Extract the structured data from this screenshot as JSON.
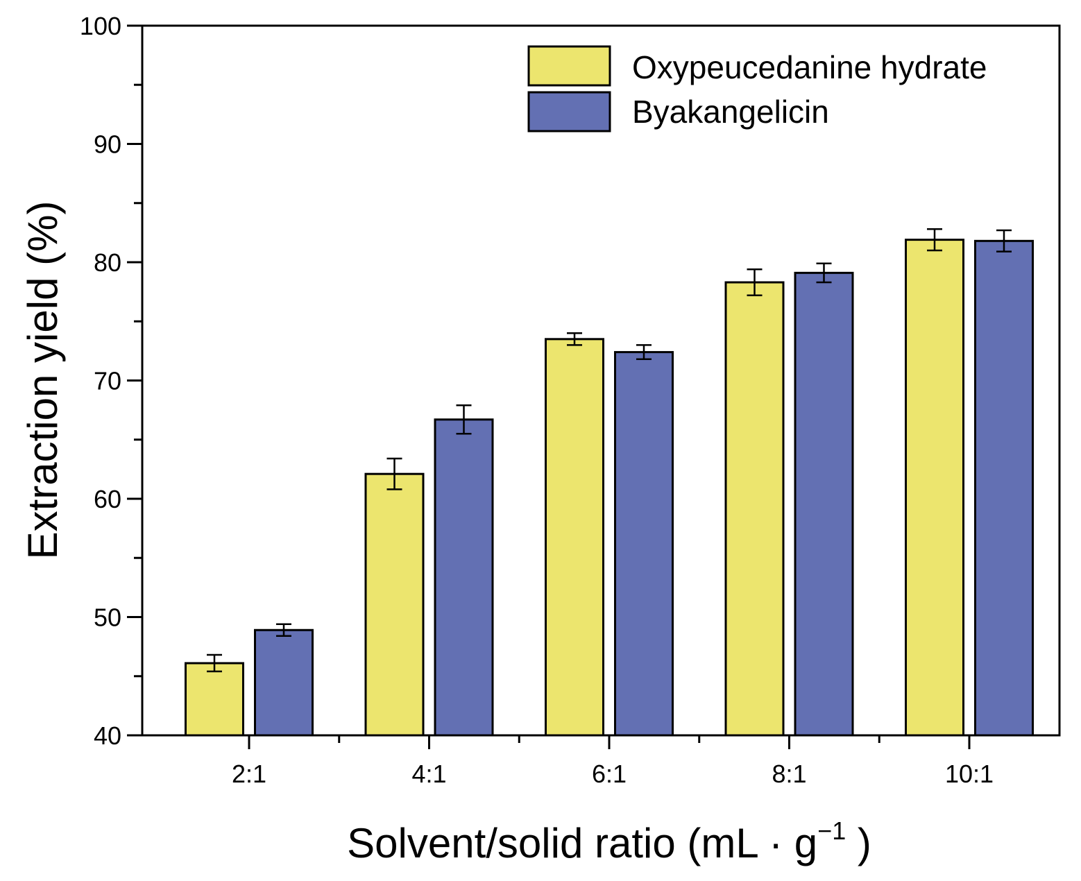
{
  "chart_data": {
    "type": "bar",
    "categories": [
      "2:1",
      "4:1",
      "6:1",
      "8:1",
      "10:1"
    ],
    "series": [
      {
        "name": "Oxypeucedanine hydrate",
        "color": "#ECE56E",
        "values": [
          46.1,
          62.1,
          73.5,
          78.3,
          81.9
        ],
        "errors": [
          0.7,
          1.3,
          0.5,
          1.1,
          0.9
        ]
      },
      {
        "name": "Byakangelicin",
        "color": "#6370B3",
        "values": [
          48.9,
          66.7,
          72.4,
          79.1,
          81.8
        ],
        "errors": [
          0.5,
          1.2,
          0.6,
          0.8,
          0.9
        ]
      }
    ],
    "ylim": [
      40,
      100
    ],
    "yticks": [
      "40",
      "50",
      "60",
      "70",
      "80",
      "90",
      "100"
    ],
    "ylabel": "Extraction yield (%)",
    "xlabel": {
      "main": "Solvent/solid ratio (mL · g",
      "superscript": "−1",
      "close": " )"
    },
    "legend_position": "top-right",
    "grid": false
  }
}
